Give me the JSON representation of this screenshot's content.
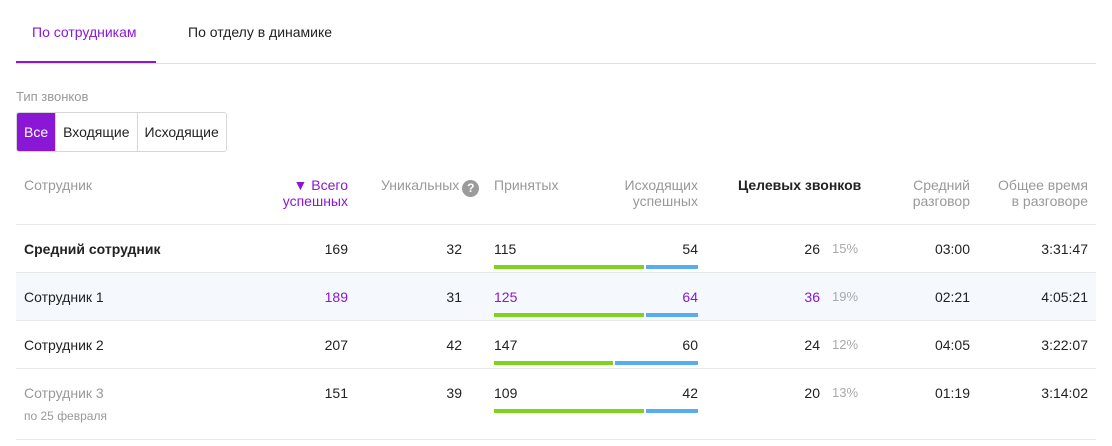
{
  "tabs": [
    "По сотрудникам",
    "По отделу в динамике"
  ],
  "filter": {
    "label": "Тип звонков",
    "options": [
      "Все",
      "Входящие",
      "Исходящие"
    ],
    "selected": "Все"
  },
  "columns": {
    "employee": "Сотрудник",
    "total_success": "▼ Всего\nуспешных",
    "unique": "Уникальных",
    "unique_help": "?",
    "accepted": "Принятых",
    "outgoing_success": "Исходящих\nуспешных",
    "target_calls": "Целевых звонков",
    "avg_talk": "Средний\nразговор",
    "total_time": "Общее время\nв разговоре"
  },
  "colors": {
    "accent": "#8a17d6",
    "accepted_bar": "#7ed321",
    "outgoing_bar": "#5aacf0"
  },
  "rows": [
    {
      "name": "Средний сотрудник",
      "total": "169",
      "unique": "32",
      "accepted": "115",
      "outgoing": "54",
      "target": "26",
      "target_pct": "15%",
      "avg": "03:00",
      "time": "3:31:47"
    },
    {
      "name": "Сотрудник 1",
      "total": "189",
      "unique": "31",
      "accepted": "125",
      "outgoing": "64",
      "target": "36",
      "target_pct": "19%",
      "avg": "02:21",
      "time": "4:05:21"
    },
    {
      "name": "Сотрудник 2",
      "total": "207",
      "unique": "42",
      "accepted": "147",
      "outgoing": "60",
      "target": "24",
      "target_pct": "12%",
      "avg": "04:05",
      "time": "3:22:07"
    },
    {
      "name": "Сотрудник 3",
      "note": "по 25 февраля",
      "total": "151",
      "unique": "39",
      "accepted": "109",
      "outgoing": "42",
      "target": "20",
      "target_pct": "13%",
      "avg": "01:19",
      "time": "3:14:02"
    }
  ]
}
